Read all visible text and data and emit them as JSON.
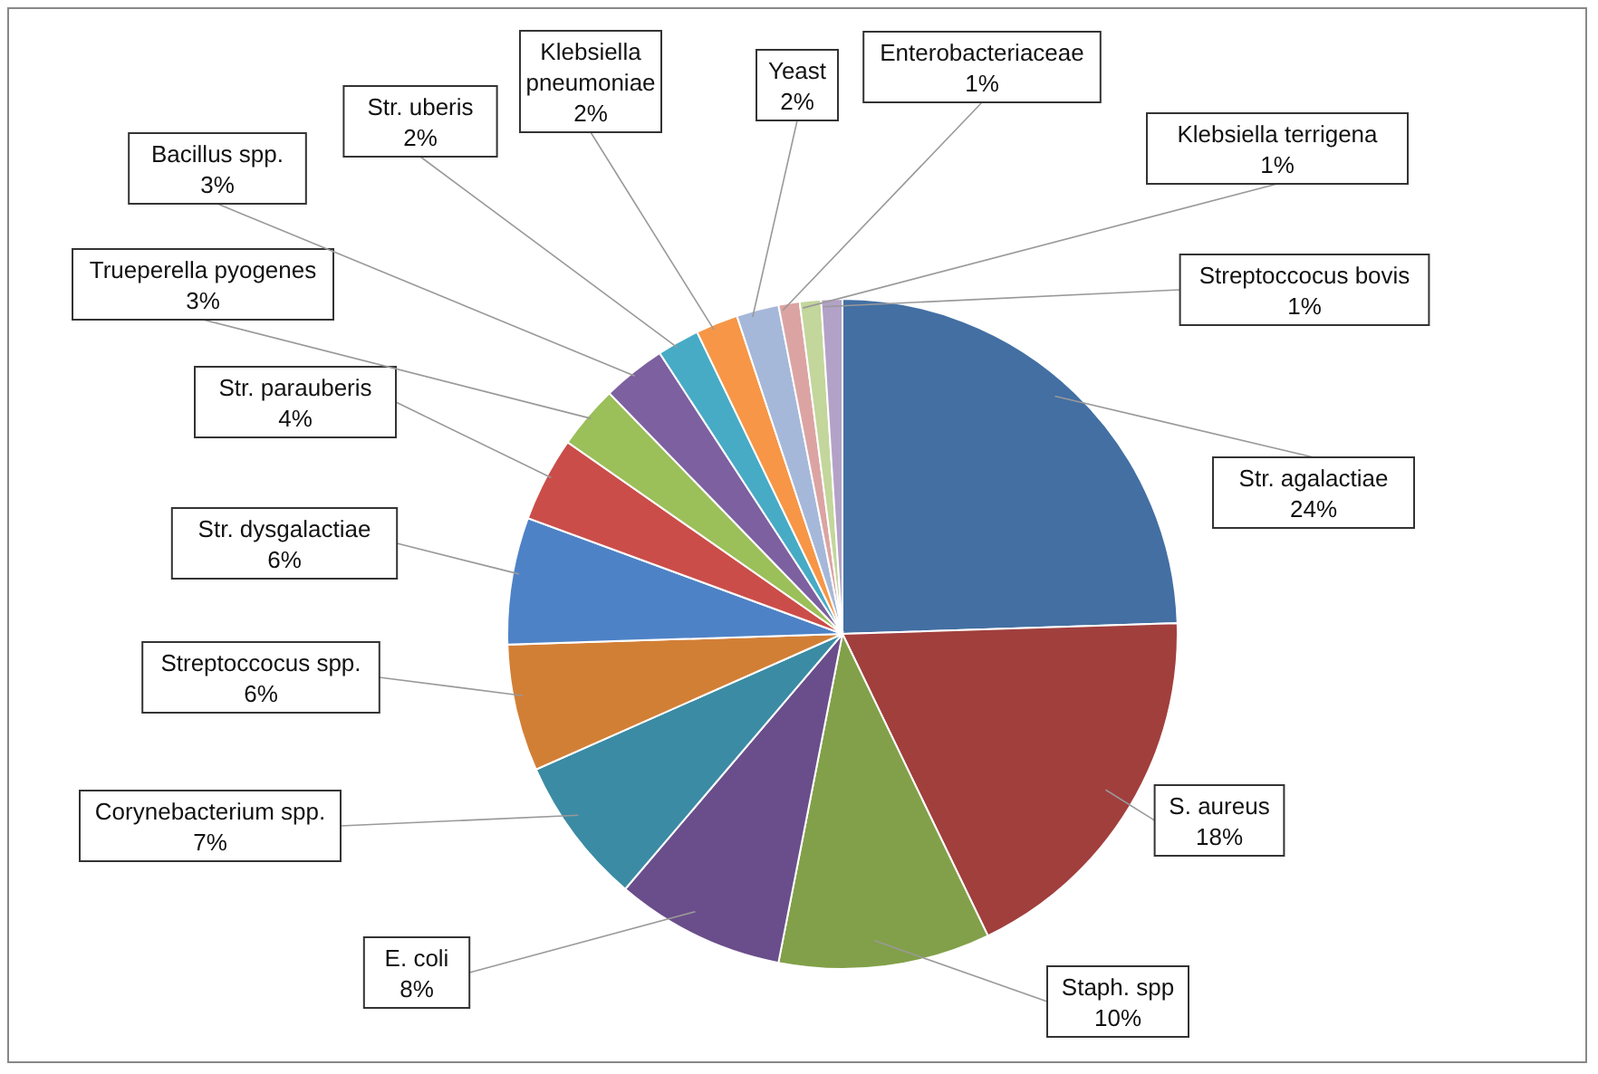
{
  "chart_data": {
    "type": "pie",
    "categories": [
      "Str. agalactiae",
      "S. aureus",
      "Staph. spp",
      "E. coli",
      "Corynebacterium spp.",
      "Streptoccocus spp.",
      "Str. dysgalactiae",
      "Str. parauberis",
      "Trueperella pyogenes",
      "Bacillus spp.",
      "Str. uberis",
      "Klebsiella pneumoniae",
      "Yeast",
      "Enterobacteriaceae",
      "Klebsiella terrigena",
      "Streptoccocus bovis"
    ],
    "values": [
      24,
      18,
      10,
      8,
      7,
      6,
      6,
      4,
      3,
      3,
      2,
      2,
      2,
      1,
      1,
      1
    ],
    "value_labels": [
      "24%",
      "18%",
      "10%",
      "8%",
      "7%",
      "6%",
      "6%",
      "4%",
      "3%",
      "3%",
      "2%",
      "2%",
      "2%",
      "1%",
      "1%",
      "1%"
    ],
    "colors": [
      "#436fa3",
      "#a13f3d",
      "#82a049",
      "#6a4e8b",
      "#3b8ba4",
      "#d27f36",
      "#4e82c6",
      "#cb4d49",
      "#9bbf59",
      "#7d60a0",
      "#47abc6",
      "#f79646",
      "#a5b8d9",
      "#dba4a3",
      "#c3d69b",
      "#b3a2c7"
    ],
    "legend": false
  }
}
